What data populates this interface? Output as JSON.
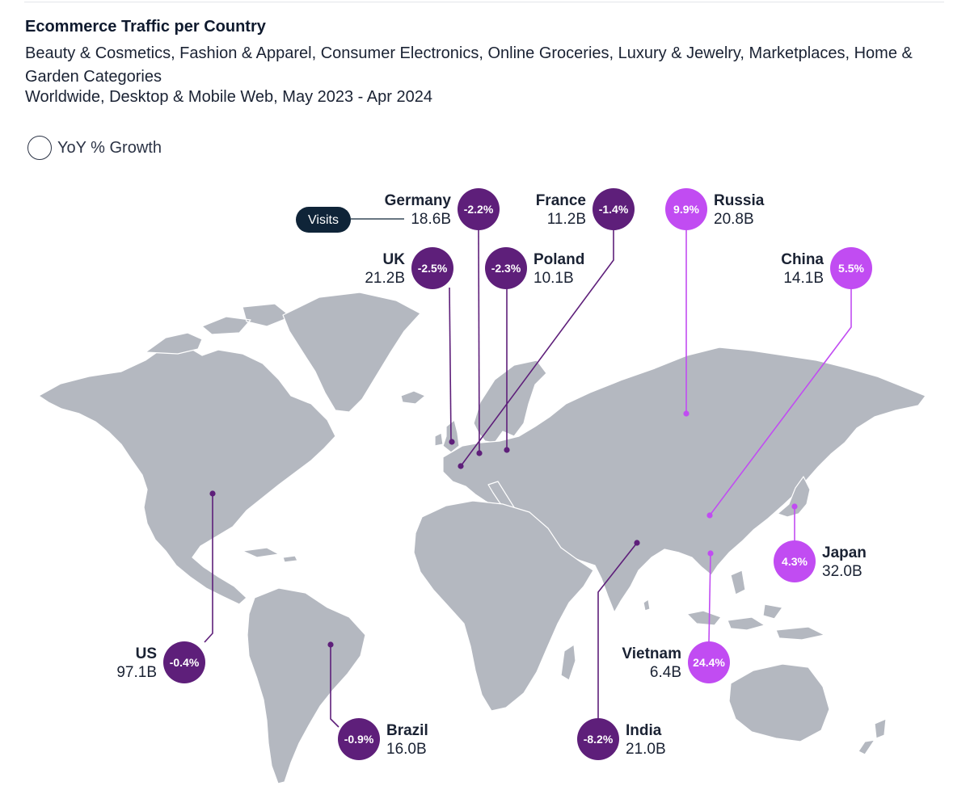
{
  "header": {
    "title": "Ecommerce Traffic per Country",
    "subtitle": "Beauty & Cosmetics, Fashion & Apparel, Consumer Electronics, Online Groceries, Luxury & Jewelry, Marketplaces, Home & Garden Categories",
    "subtitle2": "Worldwide, Desktop & Mobile Web, May 2023 - Apr 2024"
  },
  "legend": {
    "label": "YoY % Growth"
  },
  "visits_tag": {
    "label": "Visits"
  },
  "colors": {
    "decline": "#5e1f7a",
    "growth": "#c14cf2",
    "land": "#b4b8c0",
    "badge": "#0f2438"
  },
  "chart_data": {
    "type": "map",
    "title": "Ecommerce Traffic per Country",
    "metric_label": "YoY % Growth",
    "value_label": "Visits",
    "countries": [
      {
        "name": "Germany",
        "visits": "18.6B",
        "growth": "-2.2%",
        "growth_value": -2.2
      },
      {
        "name": "France",
        "visits": "11.2B",
        "growth": "-1.4%",
        "growth_value": -1.4
      },
      {
        "name": "Russia",
        "visits": "20.8B",
        "growth": "9.9%",
        "growth_value": 9.9
      },
      {
        "name": "UK",
        "visits": "21.2B",
        "growth": "-2.5%",
        "growth_value": -2.5
      },
      {
        "name": "Poland",
        "visits": "10.1B",
        "growth": "-2.3%",
        "growth_value": -2.3
      },
      {
        "name": "China",
        "visits": "14.1B",
        "growth": "5.5%",
        "growth_value": 5.5
      },
      {
        "name": "Japan",
        "visits": "32.0B",
        "growth": "4.3%",
        "growth_value": 4.3
      },
      {
        "name": "US",
        "visits": "97.1B",
        "growth": "-0.4%",
        "growth_value": -0.4
      },
      {
        "name": "Vietnam",
        "visits": "6.4B",
        "growth": "24.4%",
        "growth_value": 24.4
      },
      {
        "name": "Brazil",
        "visits": "16.0B",
        "growth": "-0.9%",
        "growth_value": -0.9
      },
      {
        "name": "India",
        "visits": "21.0B",
        "growth": "-8.2%",
        "growth_value": -8.2
      }
    ]
  }
}
